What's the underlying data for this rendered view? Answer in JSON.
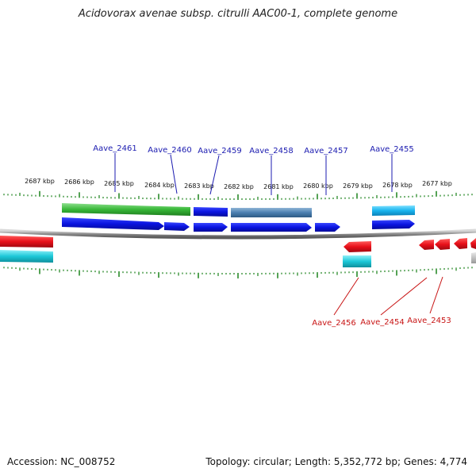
{
  "title": "Acidovorax avenae subsp. citrulli AAC00-1, complete genome",
  "footer": {
    "accession": "Accession: NC_008752",
    "summary": "Topology: circular; Length: 5,352,772 bp; Genes: 4,774"
  },
  "scale_labels": [
    "2687 kbp",
    "2686 kbp",
    "2685 kbp",
    "2684 kbp",
    "2683 kbp",
    "2682 kbp",
    "2681 kbp",
    "2680 kbp",
    "2679 kbp",
    "2678 kbp",
    "2677 kbp"
  ],
  "upper_gene_labels": [
    "Aave_2461",
    "Aave_2460",
    "Aave_2459",
    "Aave_2458",
    "Aave_2457",
    "Aave_2455"
  ],
  "lower_gene_labels": [
    "Aave_2456",
    "Aave_2454",
    "Aave_2453"
  ],
  "colors": {
    "forward_gene": "#0a14e0",
    "reverse_gene": "#e8101a",
    "cyan_feature": "#1cc8d8",
    "green_feature": "#38b838",
    "steel_feature": "#4a7fb0",
    "tick": "#2a8a2a",
    "upper_label": "#1b1bb0",
    "lower_label": "#c81414"
  }
}
